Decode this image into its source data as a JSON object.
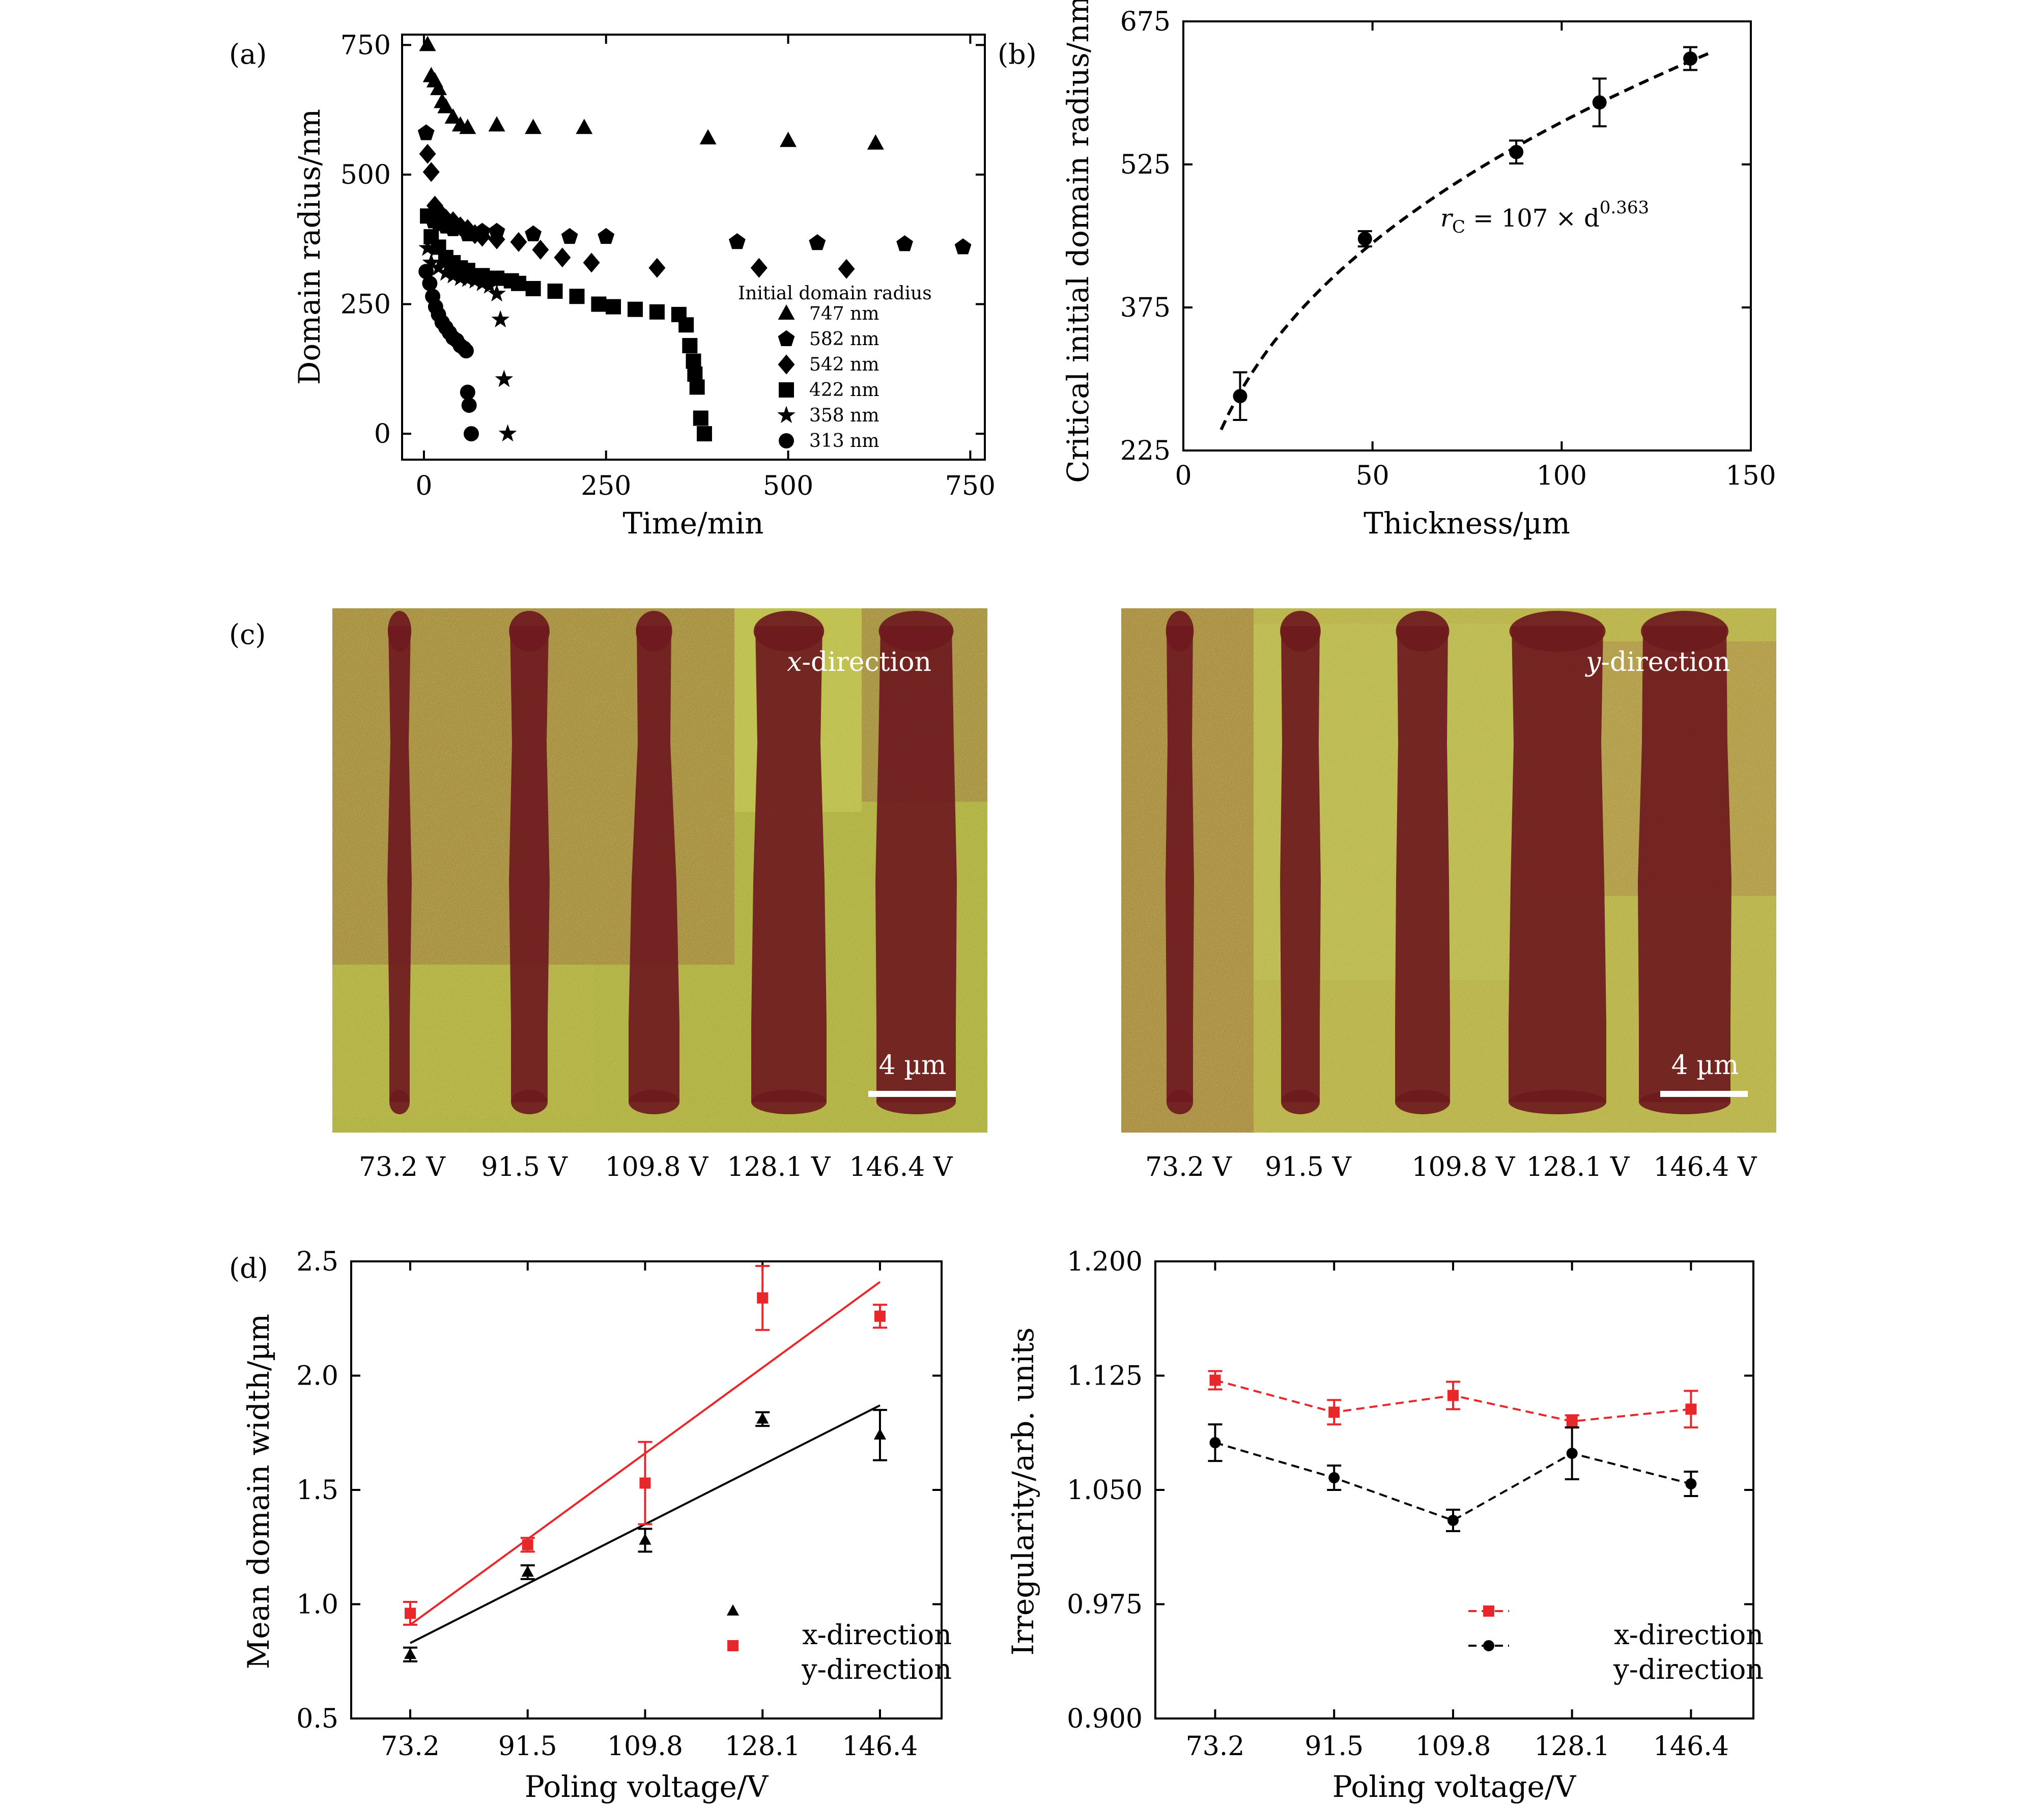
{
  "panels": {
    "a": "(a)",
    "b": "(b)",
    "c": "(c)",
    "d": "(d)"
  },
  "chart_data": [
    {
      "id": "a",
      "type": "scatter",
      "xlabel": "Time/min",
      "ylabel": "Domain radius/nm",
      "xlim": [
        -30,
        770
      ],
      "ylim": [
        -50,
        770
      ],
      "xticks": [
        0,
        250,
        500,
        750
      ],
      "yticks": [
        0,
        250,
        500,
        750
      ],
      "legend_title": "Initial domain radius",
      "legend_position": "bottom-right",
      "series": [
        {
          "name": "747 nm",
          "marker": "triangle",
          "color": "#000000",
          "points": [
            [
              5,
              750
            ],
            [
              10,
              690
            ],
            [
              15,
              680
            ],
            [
              20,
              665
            ],
            [
              25,
              640
            ],
            [
              30,
              630
            ],
            [
              40,
              610
            ],
            [
              50,
              595
            ],
            [
              60,
              590
            ],
            [
              100,
              595
            ],
            [
              150,
              590
            ],
            [
              220,
              590
            ],
            [
              390,
              570
            ],
            [
              500,
              565
            ],
            [
              620,
              560
            ]
          ]
        },
        {
          "name": "582 nm",
          "marker": "pentagon",
          "color": "#000000",
          "points": [
            [
              3,
              580
            ],
            [
              8,
              420
            ],
            [
              13,
              410
            ],
            [
              20,
              405
            ],
            [
              30,
              400
            ],
            [
              40,
              395
            ],
            [
              60,
              385
            ],
            [
              80,
              390
            ],
            [
              100,
              390
            ],
            [
              150,
              385
            ],
            [
              200,
              380
            ],
            [
              250,
              380
            ],
            [
              430,
              370
            ],
            [
              540,
              368
            ],
            [
              660,
              366
            ],
            [
              740,
              360
            ]
          ]
        },
        {
          "name": "542 nm",
          "marker": "diamond",
          "color": "#000000",
          "points": [
            [
              5,
              540
            ],
            [
              10,
              505
            ],
            [
              15,
              440
            ],
            [
              20,
              430
            ],
            [
              25,
              420
            ],
            [
              30,
              415
            ],
            [
              40,
              410
            ],
            [
              50,
              400
            ],
            [
              60,
              395
            ],
            [
              70,
              385
            ],
            [
              80,
              380
            ],
            [
              100,
              375
            ],
            [
              130,
              370
            ],
            [
              160,
              355
            ],
            [
              190,
              340
            ],
            [
              230,
              330
            ],
            [
              320,
              320
            ],
            [
              460,
              320
            ],
            [
              580,
              318
            ]
          ]
        },
        {
          "name": "422 nm",
          "marker": "square",
          "color": "#000000",
          "points": [
            [
              5,
              420
            ],
            [
              10,
              380
            ],
            [
              20,
              360
            ],
            [
              30,
              340
            ],
            [
              40,
              330
            ],
            [
              50,
              320
            ],
            [
              60,
              315
            ],
            [
              80,
              305
            ],
            [
              100,
              300
            ],
            [
              120,
              295
            ],
            [
              130,
              290
            ],
            [
              150,
              280
            ],
            [
              180,
              275
            ],
            [
              210,
              265
            ],
            [
              240,
              250
            ],
            [
              260,
              245
            ],
            [
              290,
              240
            ],
            [
              320,
              235
            ],
            [
              350,
              230
            ],
            [
              360,
              210
            ],
            [
              365,
              170
            ],
            [
              370,
              140
            ],
            [
              372,
              115
            ],
            [
              375,
              90
            ],
            [
              380,
              30
            ],
            [
              385,
              0
            ]
          ]
        },
        {
          "name": "358 nm",
          "marker": "star",
          "color": "#000000",
          "points": [
            [
              5,
              358
            ],
            [
              10,
              330
            ],
            [
              20,
              320
            ],
            [
              30,
              310
            ],
            [
              40,
              305
            ],
            [
              50,
              300
            ],
            [
              60,
              298
            ],
            [
              70,
              295
            ],
            [
              80,
              290
            ],
            [
              90,
              285
            ],
            [
              100,
              270
            ],
            [
              105,
              220
            ],
            [
              110,
              105
            ],
            [
              115,
              0
            ]
          ]
        },
        {
          "name": "313 nm",
          "marker": "circle",
          "color": "#000000",
          "points": [
            [
              3,
              313
            ],
            [
              8,
              290
            ],
            [
              12,
              265
            ],
            [
              16,
              245
            ],
            [
              20,
              230
            ],
            [
              25,
              215
            ],
            [
              30,
              205
            ],
            [
              35,
              195
            ],
            [
              40,
              185
            ],
            [
              45,
              180
            ],
            [
              50,
              170
            ],
            [
              55,
              165
            ],
            [
              58,
              160
            ],
            [
              60,
              80
            ],
            [
              62,
              55
            ],
            [
              65,
              0
            ]
          ]
        }
      ]
    },
    {
      "id": "b",
      "type": "scatter",
      "xlabel": "Thickness/µm",
      "ylabel": "Critical initial domain radius/nm",
      "xlim": [
        0,
        150
      ],
      "ylim": [
        225,
        675
      ],
      "xticks": [
        0,
        50,
        100,
        150
      ],
      "yticks": [
        225,
        375,
        525,
        675
      ],
      "annotation": {
        "prefix": "r",
        "subscript": "C",
        "middle": " = 107 × d",
        "superscript": "0.363"
      },
      "points": [
        [
          15,
          282,
          25
        ],
        [
          48,
          447,
          8
        ],
        [
          88,
          538,
          12
        ],
        [
          110,
          590,
          25
        ],
        [
          134,
          636,
          12
        ]
      ],
      "fit": {
        "a": 107,
        "b": 0.363,
        "x_range": [
          10,
          140
        ]
      }
    },
    {
      "id": "d-left",
      "type": "scatter",
      "xlabel": "Poling voltage/V",
      "ylabel": "Mean domain width/µm",
      "categories": [
        "73.2",
        "91.5",
        "109.8",
        "128.1",
        "146.4"
      ],
      "xlim": [
        64,
        156
      ],
      "ylim": [
        0.5,
        2.5
      ],
      "yticks": [
        "0.5",
        "1.0",
        "1.5",
        "2.0",
        "2.5"
      ],
      "legend_position": "bottom-right",
      "series": [
        {
          "name": "x-direction",
          "marker": "triangle",
          "color": "#000000",
          "points": [
            [
              73.2,
              0.78,
              0.03
            ],
            [
              91.5,
              1.14,
              0.03
            ],
            [
              109.8,
              1.28,
              0.05
            ],
            [
              128.1,
              1.81,
              0.03
            ],
            [
              146.4,
              1.74,
              0.11
            ]
          ],
          "fit": [
            [
              73.2,
              0.83
            ],
            [
              146.4,
              1.87
            ]
          ]
        },
        {
          "name": "y-direction",
          "marker": "square",
          "color": "#e8272a",
          "points": [
            [
              73.2,
              0.96,
              0.05
            ],
            [
              91.5,
              1.26,
              0.03
            ],
            [
              109.8,
              1.53,
              0.18
            ],
            [
              128.1,
              2.34,
              0.14
            ],
            [
              146.4,
              2.26,
              0.05
            ]
          ],
          "fit": [
            [
              73.2,
              0.91
            ],
            [
              146.4,
              2.41
            ]
          ]
        }
      ]
    },
    {
      "id": "d-right",
      "type": "line",
      "xlabel": "Poling voltage/V",
      "ylabel": "Irregularity/arb. units",
      "categories": [
        "73.2",
        "91.5",
        "109.8",
        "128.1",
        "146.4"
      ],
      "xlim": [
        64,
        156
      ],
      "ylim": [
        0.9,
        1.2
      ],
      "yticks": [
        "0.900",
        "0.975",
        "1.050",
        "1.125",
        "1.200"
      ],
      "legend_position": "bottom-right",
      "series": [
        {
          "name": "x-direction",
          "marker": "square",
          "color": "#e8272a",
          "dashed": true,
          "points": [
            [
              73.2,
              1.122,
              0.006
            ],
            [
              91.5,
              1.101,
              0.008
            ],
            [
              109.8,
              1.112,
              0.009
            ],
            [
              128.1,
              1.095,
              0.004
            ],
            [
              146.4,
              1.103,
              0.012
            ]
          ]
        },
        {
          "name": "y-direction",
          "marker": "circle",
          "color": "#000000",
          "dashed": true,
          "points": [
            [
              73.2,
              1.081,
              0.012
            ],
            [
              91.5,
              1.058,
              0.008
            ],
            [
              109.8,
              1.03,
              0.007
            ],
            [
              128.1,
              1.074,
              0.017
            ],
            [
              146.4,
              1.054,
              0.008
            ]
          ]
        }
      ]
    }
  ],
  "images": [
    {
      "label_prefix": "x",
      "label_suffix": "-direction",
      "scalebar": "4 µm",
      "voltages": [
        "73.2 V",
        "91.5 V",
        "109.8 V",
        "128.1 V",
        "146.4 V"
      ]
    },
    {
      "label_prefix": "y",
      "label_suffix": "-direction",
      "scalebar": "4 µm",
      "voltages": [
        "73.2 V",
        "91.5 V",
        "109.8 V",
        "128.1 V",
        "146.4 V"
      ]
    }
  ],
  "colors": {
    "ink": "#000000",
    "red": "#e8272a",
    "film": "#a7a83c",
    "domain": "#6e1a1e"
  }
}
